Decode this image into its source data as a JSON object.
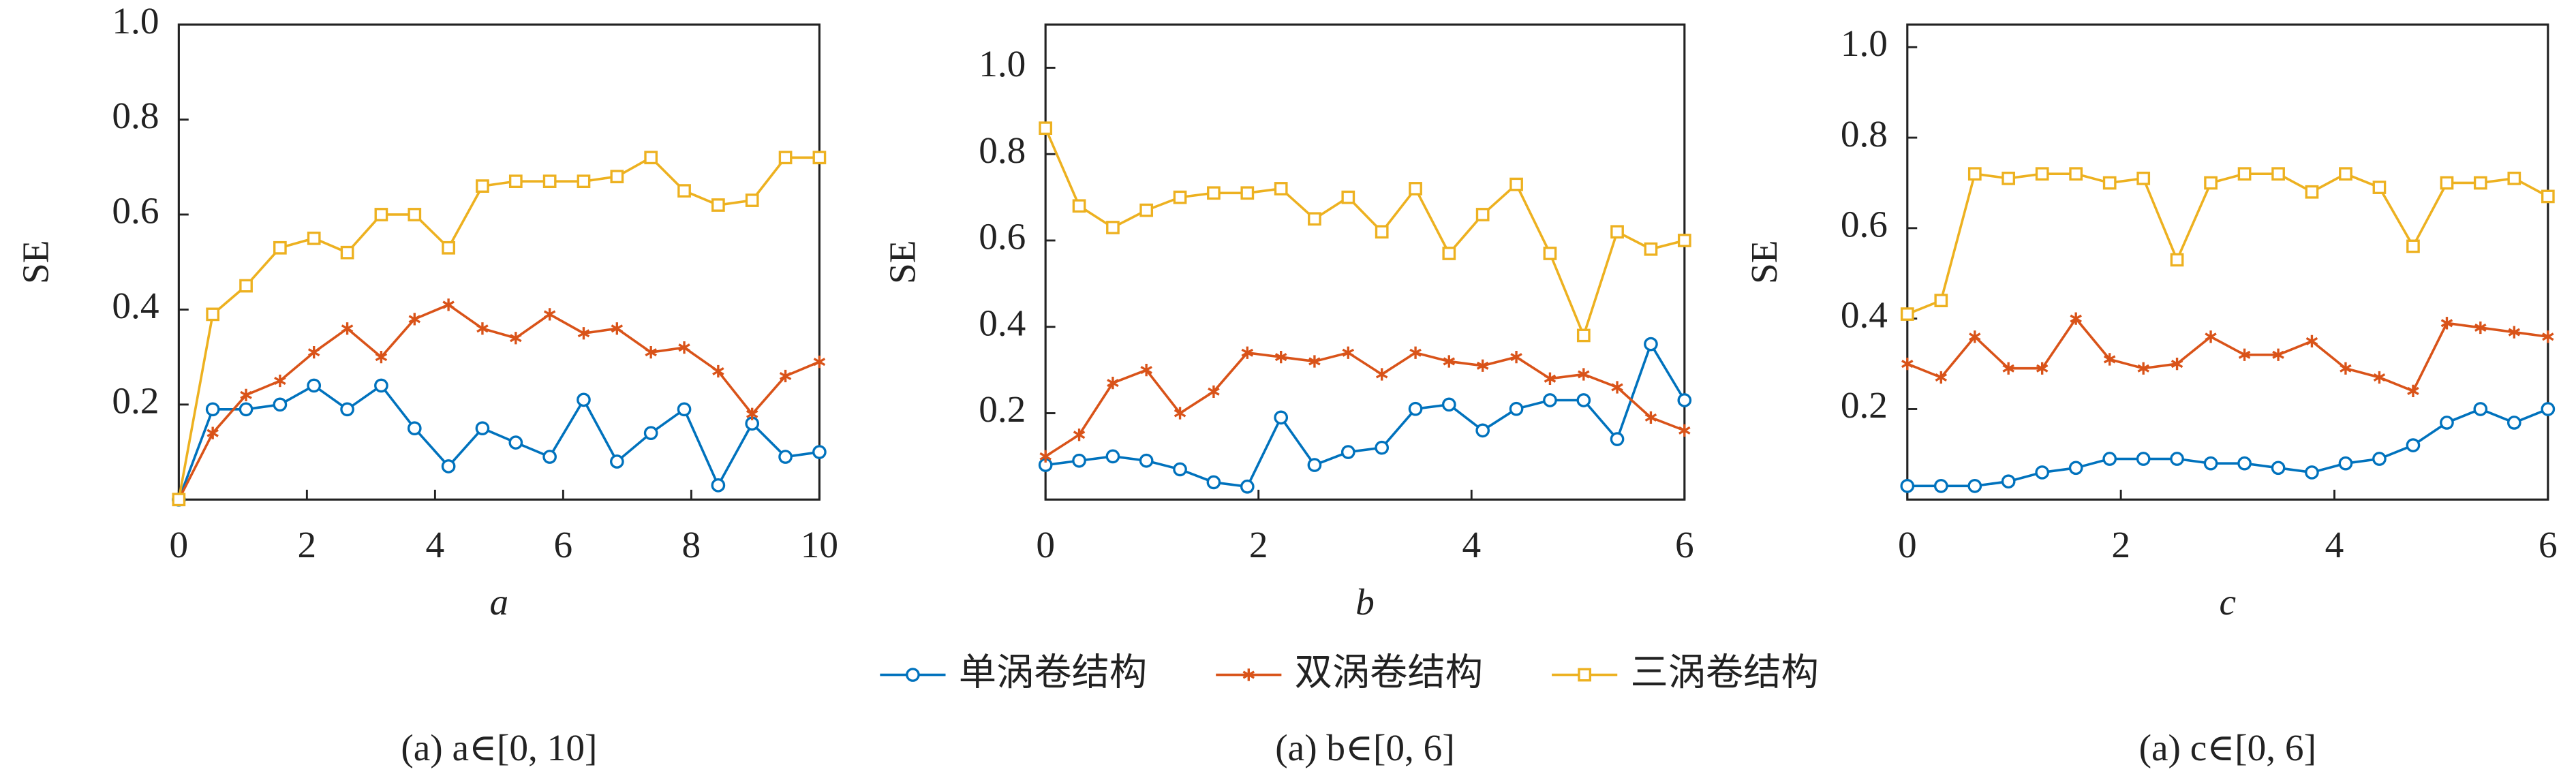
{
  "chart_data": [
    {
      "type": "line",
      "caption": "(a) a∈[0, 10]",
      "x_label": "a",
      "y_label": "SE",
      "x": [
        0,
        0.53,
        1.05,
        1.58,
        2.11,
        2.63,
        3.16,
        3.68,
        4.21,
        4.74,
        5.26,
        5.79,
        6.32,
        6.84,
        7.37,
        7.89,
        8.42,
        8.95,
        9.47,
        10
      ],
      "xlim": [
        0,
        10
      ],
      "xticks": [
        0,
        2,
        4,
        6,
        8,
        10
      ],
      "ylim": [
        0,
        1.0
      ],
      "yticks": [
        0.2,
        0.4,
        0.6,
        0.8,
        {
          "value": 1.0,
          "label": "1.0"
        }
      ],
      "series": [
        {
          "name": "单涡卷结构",
          "color": "#0072BD",
          "marker": "circle",
          "values": [
            0,
            0.19,
            0.19,
            0.2,
            0.24,
            0.19,
            0.24,
            0.15,
            0.07,
            0.15,
            0.12,
            0.09,
            0.21,
            0.08,
            0.14,
            0.19,
            0.03,
            0.16,
            0.09,
            0.1
          ]
        },
        {
          "name": "双涡卷结构",
          "color": "#D95319",
          "marker": "star",
          "values": [
            0,
            0.14,
            0.22,
            0.25,
            0.31,
            0.36,
            0.3,
            0.38,
            0.41,
            0.36,
            0.34,
            0.39,
            0.35,
            0.36,
            0.31,
            0.32,
            0.27,
            0.18,
            0.26,
            0.29
          ]
        },
        {
          "name": "三涡卷结构",
          "color": "#EDB120",
          "marker": "square",
          "values": [
            0,
            0.39,
            0.45,
            0.53,
            0.55,
            0.52,
            0.6,
            0.6,
            0.53,
            0.66,
            0.67,
            0.67,
            0.67,
            0.68,
            0.72,
            0.65,
            0.62,
            0.63,
            0.72,
            0.72
          ]
        }
      ]
    },
    {
      "type": "line",
      "caption": "(a) b∈[0, 6]",
      "x_label": "b",
      "y_label": "SE",
      "x": [
        0,
        0.316,
        0.632,
        0.947,
        1.263,
        1.579,
        1.895,
        2.211,
        2.526,
        2.842,
        3.158,
        3.474,
        3.789,
        4.105,
        4.421,
        4.737,
        5.053,
        5.368,
        5.684,
        6
      ],
      "xlim": [
        0,
        6
      ],
      "xticks": [
        0,
        2,
        4,
        6
      ],
      "ylim": [
        0,
        1.1
      ],
      "yticks": [
        0.2,
        0.4,
        0.6,
        0.8,
        {
          "value": 1.0,
          "label": "1.0"
        }
      ],
      "series": [
        {
          "name": "单涡卷结构",
          "color": "#0072BD",
          "marker": "circle",
          "values": [
            0.08,
            0.09,
            0.1,
            0.09,
            0.07,
            0.04,
            0.03,
            0.19,
            0.08,
            0.11,
            0.12,
            0.21,
            0.22,
            0.16,
            0.21,
            0.23,
            0.23,
            0.14,
            0.36,
            0.23
          ]
        },
        {
          "name": "双涡卷结构",
          "color": "#D95319",
          "marker": "star",
          "values": [
            0.1,
            0.15,
            0.27,
            0.3,
            0.2,
            0.25,
            0.34,
            0.33,
            0.32,
            0.34,
            0.29,
            0.34,
            0.32,
            0.31,
            0.33,
            0.28,
            0.29,
            0.26,
            0.19,
            0.16
          ]
        },
        {
          "name": "三涡卷结构",
          "color": "#EDB120",
          "marker": "square",
          "values": [
            0.86,
            0.68,
            0.63,
            0.67,
            0.7,
            0.71,
            0.71,
            0.72,
            0.65,
            0.7,
            0.62,
            0.72,
            0.57,
            0.66,
            0.73,
            0.57,
            0.38,
            0.62,
            0.58,
            0.6
          ]
        }
      ]
    },
    {
      "type": "line",
      "caption": "(a) c∈[0, 6]",
      "x_label": "c",
      "y_label": "SE",
      "x": [
        0,
        0.316,
        0.632,
        0.947,
        1.263,
        1.579,
        1.895,
        2.211,
        2.526,
        2.842,
        3.158,
        3.474,
        3.789,
        4.105,
        4.421,
        4.737,
        5.053,
        5.368,
        5.684,
        6
      ],
      "xlim": [
        0,
        6
      ],
      "xticks": [
        0,
        2,
        4,
        6
      ],
      "ylim": [
        0,
        1.05
      ],
      "yticks": [
        0.2,
        0.4,
        0.6,
        0.8,
        {
          "value": 1.0,
          "label": "1.0"
        }
      ],
      "series": [
        {
          "name": "单涡卷结构",
          "color": "#0072BD",
          "marker": "circle",
          "values": [
            0.03,
            0.03,
            0.03,
            0.04,
            0.06,
            0.07,
            0.09,
            0.09,
            0.09,
            0.08,
            0.08,
            0.07,
            0.06,
            0.08,
            0.09,
            0.12,
            0.17,
            0.2,
            0.17,
            0.2
          ]
        },
        {
          "name": "双涡卷结构",
          "color": "#D95319",
          "marker": "star",
          "values": [
            0.3,
            0.27,
            0.36,
            0.29,
            0.29,
            0.4,
            0.31,
            0.29,
            0.3,
            0.36,
            0.32,
            0.32,
            0.35,
            0.29,
            0.27,
            0.24,
            0.39,
            0.38,
            0.37,
            0.36
          ]
        },
        {
          "name": "三涡卷结构",
          "color": "#EDB120",
          "marker": "square",
          "values": [
            0.41,
            0.44,
            0.72,
            0.71,
            0.72,
            0.72,
            0.7,
            0.71,
            0.53,
            0.7,
            0.72,
            0.72,
            0.68,
            0.72,
            0.69,
            0.56,
            0.7,
            0.7,
            0.71,
            0.67
          ]
        }
      ]
    }
  ]
}
